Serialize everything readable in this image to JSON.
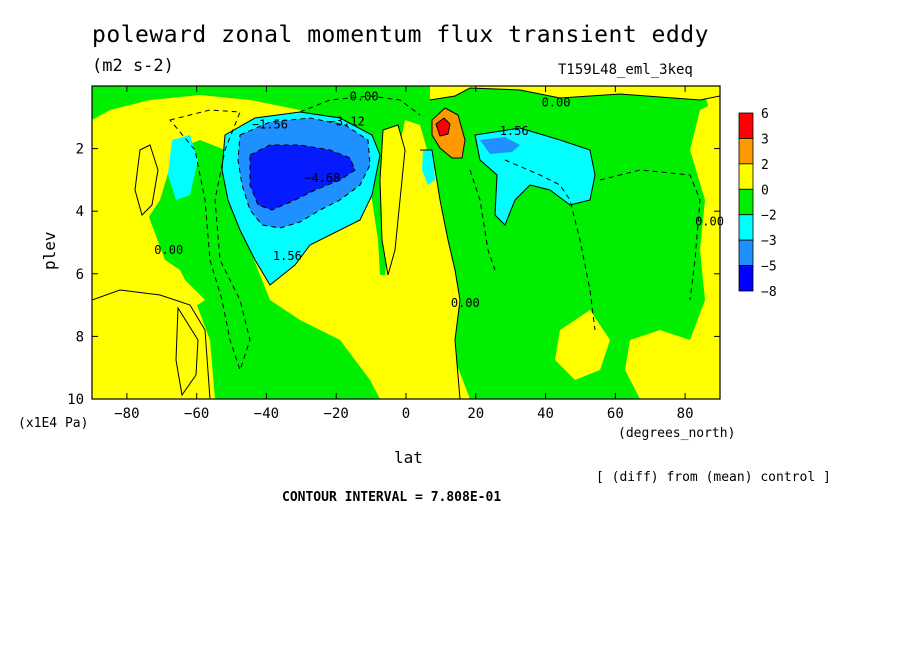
{
  "chart_data": {
    "type": "heatmap",
    "title": "poleward zonal momentum flux transient eddy",
    "units": "(m2 s-2)",
    "run_label": "T159L48_eml_3keq",
    "xlabel": "lat",
    "x_units": "(degrees_north)",
    "ylabel": "plev",
    "y_units": "(x1E4 Pa)",
    "xlim": [
      -90,
      90
    ],
    "ylim": [
      10,
      0
    ],
    "x_ticks": [
      -80,
      -60,
      -40,
      -20,
      0,
      20,
      40,
      60,
      80
    ],
    "x_tick_labels": [
      "−80",
      "−60",
      "−40",
      "−20",
      "0",
      "20",
      "40",
      "60",
      "80"
    ],
    "y_ticks": [
      2,
      4,
      6,
      8,
      10
    ],
    "y_tick_labels": [
      "2",
      "4",
      "6",
      "8",
      "10"
    ],
    "colorbar": {
      "levels": [
        -8,
        -5,
        -3,
        -2,
        0,
        2,
        3,
        6
      ],
      "labels": [
        "6",
        "3",
        "2",
        "0",
        "−2",
        "−3",
        "−5",
        "−8"
      ],
      "colors": [
        "#ff0000",
        "#ff9900",
        "#ffff00",
        "#00ee00",
        "#00ffff",
        "#1e90ff",
        "#0000ff"
      ]
    },
    "contour_labels": [
      {
        "text": "0.00",
        "lat": -12,
        "p": 0.3
      },
      {
        "text": "0.00",
        "lat": 43,
        "p": 0.5
      },
      {
        "text": "−1.56",
        "lat": -39,
        "p": 1.2
      },
      {
        "text": "−3.12",
        "lat": -17,
        "p": 1.1
      },
      {
        "text": "−4.68",
        "lat": -24,
        "p": 2.9
      },
      {
        "text": "1.56",
        "lat": 31,
        "p": 1.4
      },
      {
        "text": "0.00",
        "lat": -68,
        "p": 5.2
      },
      {
        "text": "1.56",
        "lat": -34,
        "p": 5.4
      },
      {
        "text": "0.00",
        "lat": 17,
        "p": 6.9
      },
      {
        "text": "0.00",
        "lat": 87,
        "p": 4.3
      }
    ],
    "grid": false,
    "legend": "right colorbar",
    "note": "[ (diff) from (mean) control ]",
    "contour_interval": "CONTOUR INTERVAL = 7.808E-01"
  }
}
